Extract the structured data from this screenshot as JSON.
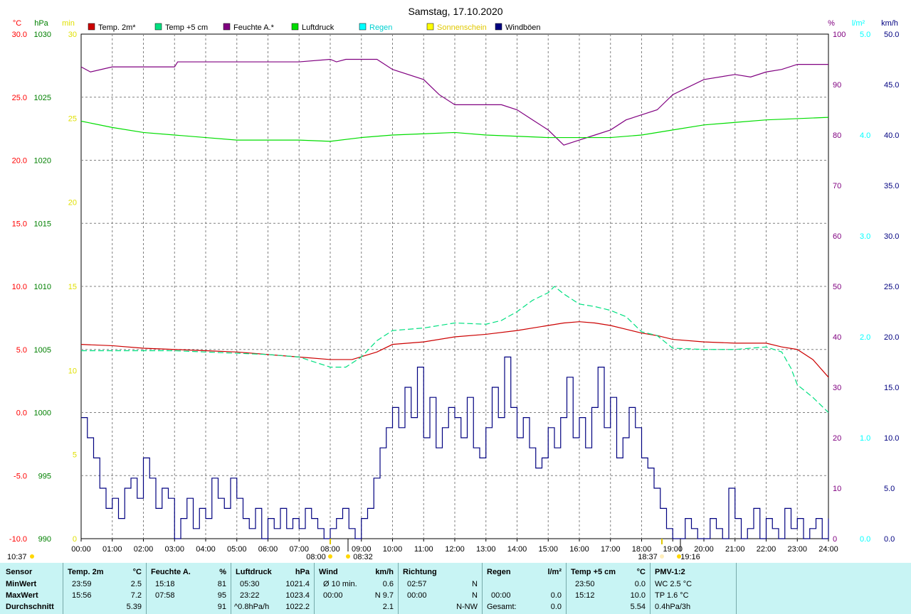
{
  "chart_data": {
    "type": "line",
    "title": "Samstag, 17.10.2020",
    "xlim": [
      0,
      24
    ],
    "x_ticks": [
      "00:00",
      "01:00",
      "02:00",
      "03:00",
      "04:00",
      "05:00",
      "06:00",
      "07:00",
      "08:00",
      "09:00",
      "10:00",
      "11:00",
      "12:00",
      "13:00",
      "14:00",
      "15:00",
      "16:00",
      "17:00",
      "18:00",
      "19:00",
      "20:00",
      "21:00",
      "22:00",
      "23:00",
      "24:00"
    ],
    "axes": {
      "temp": {
        "unit": "°C",
        "range": [
          -10,
          30
        ],
        "ticks": [
          "30.0",
          "25.0",
          "20.0",
          "15.0",
          "10.0",
          "5.0",
          "0.0",
          "-5.0",
          "-10.0"
        ],
        "color": "#ff0000"
      },
      "pressure": {
        "unit": "hPa",
        "range": [
          990,
          1030
        ],
        "ticks": [
          "1030",
          "1025",
          "1020",
          "1015",
          "1010",
          "1005",
          "1000",
          "995",
          "990"
        ],
        "color": "#008000"
      },
      "sunshine": {
        "unit": "min",
        "range": [
          0,
          30
        ],
        "ticks": [
          "30",
          "25",
          "20",
          "15",
          "10",
          "5",
          "0"
        ],
        "color": "#e0e000"
      },
      "humidity": {
        "unit": "%",
        "range": [
          0,
          100
        ],
        "ticks": [
          "100",
          "90",
          "80",
          "70",
          "60",
          "50",
          "40",
          "30",
          "20",
          "10",
          "0"
        ],
        "color": "#800080"
      },
      "rain": {
        "unit": "l/m²",
        "range": [
          0,
          5
        ],
        "ticks": [
          "5.0",
          "4.0",
          "3.0",
          "2.0",
          "1.0",
          "0.0"
        ],
        "color": "#00ffff"
      },
      "wind": {
        "unit": "km/h",
        "range": [
          0,
          50
        ],
        "ticks": [
          "50.0",
          "45.0",
          "40.0",
          "35.0",
          "30.0",
          "25.0",
          "20.0",
          "15.0",
          "10.0",
          "5.0",
          "0.0"
        ],
        "color": "#000080"
      }
    },
    "legend": [
      {
        "label": "Temp. 2m*",
        "color": "#cc0000"
      },
      {
        "label": "Temp +5 cm",
        "color": "#00e080"
      },
      {
        "label": "Feuchte A.*",
        "color": "#800080"
      },
      {
        "label": "Luftdruck",
        "color": "#00dd00"
      },
      {
        "label": "Regen",
        "color": "#00ffff"
      },
      {
        "label": "Sonnenschein",
        "color": "#ffff00"
      },
      {
        "label": "Windböen",
        "color": "#000080"
      }
    ],
    "series": [
      {
        "name": "Temp. 2m*",
        "axis": "temp",
        "color": "#cc0000",
        "x": [
          0,
          1,
          2,
          3,
          4,
          5,
          6,
          7,
          8,
          8.7,
          9.5,
          10,
          11,
          12,
          13,
          14,
          15,
          15.5,
          16,
          16.5,
          17,
          17.5,
          18,
          18.5,
          19,
          20,
          21,
          22,
          22.5,
          23,
          23.5,
          24
        ],
        "y": [
          5.4,
          5.3,
          5.1,
          5.0,
          4.9,
          4.8,
          4.6,
          4.4,
          4.2,
          4.2,
          4.8,
          5.4,
          5.6,
          6.0,
          6.2,
          6.5,
          6.9,
          7.1,
          7.2,
          7.1,
          6.9,
          6.6,
          6.3,
          6.1,
          5.8,
          5.6,
          5.5,
          5.5,
          5.2,
          5.0,
          4.2,
          2.8
        ]
      },
      {
        "name": "Temp +5 cm",
        "axis": "temp",
        "color": "#00e080",
        "dashed": true,
        "x": [
          0,
          1,
          2,
          3,
          4,
          5,
          6,
          7,
          8,
          8.5,
          9,
          9.5,
          10,
          10.5,
          11,
          12,
          13,
          13.5,
          14,
          14.5,
          15,
          15.2,
          15.5,
          16,
          16.5,
          17,
          17.5,
          18,
          18.5,
          19,
          20,
          21,
          22,
          22.5,
          22.8,
          23,
          23.5,
          24
        ],
        "y": [
          4.9,
          4.9,
          4.9,
          4.9,
          4.8,
          4.7,
          4.6,
          4.4,
          3.6,
          3.6,
          4.4,
          5.7,
          6.5,
          6.6,
          6.7,
          7.1,
          7.0,
          7.3,
          8.0,
          8.9,
          9.5,
          10.0,
          9.4,
          8.6,
          8.4,
          8.1,
          7.6,
          6.4,
          6.1,
          5.1,
          5.0,
          5.0,
          5.2,
          4.8,
          3.5,
          2.2,
          1.2,
          0.0
        ]
      },
      {
        "name": "Feuchte A.*",
        "axis": "humidity",
        "color": "#800080",
        "x": [
          0,
          0.3,
          1,
          2,
          3,
          3.1,
          4,
          5,
          6,
          7,
          8,
          8.2,
          8.5,
          9,
          9.5,
          10,
          11,
          11.5,
          12,
          12.5,
          13,
          13.5,
          14,
          14.5,
          15,
          15.5,
          16,
          16.5,
          17,
          17.5,
          18,
          18.5,
          19,
          20,
          21,
          21.5,
          22,
          22.5,
          23,
          24
        ],
        "y": [
          93.5,
          92.5,
          93.5,
          93.5,
          93.5,
          94.5,
          94.5,
          94.5,
          94.5,
          94.5,
          95,
          94.5,
          95,
          95,
          95,
          93,
          91,
          88,
          86,
          86,
          86,
          86,
          85,
          83,
          81,
          78,
          79,
          80,
          81,
          83,
          84,
          85,
          88,
          91,
          92,
          91.5,
          92.5,
          93,
          94,
          94
        ]
      },
      {
        "name": "Luftdruck",
        "axis": "pressure",
        "color": "#00dd00",
        "x": [
          0,
          1,
          2,
          3,
          4,
          5,
          6,
          7,
          8,
          9,
          10,
          11,
          12,
          13,
          14,
          15,
          16,
          17,
          18,
          19,
          20,
          21,
          22,
          23,
          24
        ],
        "y": [
          1023.1,
          1022.6,
          1022.2,
          1022.0,
          1021.8,
          1021.6,
          1021.6,
          1021.6,
          1021.5,
          1021.8,
          1022.0,
          1022.1,
          1022.2,
          1022.0,
          1021.9,
          1021.8,
          1021.8,
          1021.8,
          1022.0,
          1022.4,
          1022.8,
          1023.0,
          1023.2,
          1023.3,
          1023.4
        ]
      },
      {
        "name": "Windböen",
        "axis": "wind",
        "color": "#000080",
        "step": true,
        "x": [
          0,
          0.2,
          0.4,
          0.6,
          0.8,
          1.0,
          1.2,
          1.4,
          1.6,
          1.8,
          2.0,
          2.2,
          2.4,
          2.6,
          2.8,
          3.0,
          3.2,
          3.4,
          3.6,
          3.8,
          4.0,
          4.2,
          4.4,
          4.6,
          4.8,
          5.0,
          5.2,
          5.4,
          5.6,
          5.8,
          6.0,
          6.2,
          6.4,
          6.6,
          6.8,
          7.0,
          7.2,
          7.4,
          7.6,
          7.8,
          8.0,
          8.2,
          8.4,
          8.6,
          8.8,
          9.0,
          9.2,
          9.4,
          9.6,
          9.8,
          10.0,
          10.2,
          10.4,
          10.6,
          10.8,
          11.0,
          11.2,
          11.4,
          11.6,
          11.8,
          12.0,
          12.2,
          12.4,
          12.6,
          12.8,
          13.0,
          13.2,
          13.4,
          13.6,
          13.8,
          14.0,
          14.2,
          14.4,
          14.6,
          14.8,
          15.0,
          15.2,
          15.4,
          15.6,
          15.8,
          16.0,
          16.2,
          16.4,
          16.6,
          16.8,
          17.0,
          17.2,
          17.4,
          17.6,
          17.8,
          18.0,
          18.2,
          18.4,
          18.6,
          18.8,
          19.0,
          19.2,
          19.4,
          19.6,
          19.8,
          20.0,
          20.2,
          20.4,
          20.6,
          20.8,
          21.0,
          21.2,
          21.4,
          21.6,
          21.8,
          22.0,
          22.2,
          22.4,
          22.6,
          22.8,
          23.0,
          23.2,
          23.4,
          23.6,
          23.8,
          24.0
        ],
        "y": [
          12,
          10,
          8,
          5,
          3,
          4,
          2,
          5,
          6,
          4,
          8,
          6,
          3,
          5,
          4,
          0,
          2,
          4,
          1,
          3,
          2,
          6,
          4,
          3,
          6,
          4,
          2,
          1,
          3,
          0,
          2,
          1,
          3,
          1,
          2,
          1,
          3,
          2,
          1,
          0,
          1,
          2,
          3,
          1,
          0,
          2,
          3,
          6,
          9,
          11,
          13,
          11,
          15,
          12,
          17,
          10,
          14,
          9,
          11,
          13,
          12,
          10,
          14,
          9,
          8,
          11,
          15,
          12,
          18,
          13,
          10,
          12,
          9,
          7,
          8,
          11,
          9,
          12,
          16,
          10,
          12,
          9,
          13,
          17,
          11,
          14,
          8,
          10,
          13,
          11,
          8,
          7,
          5,
          3,
          1,
          0,
          0,
          2,
          1,
          0,
          0,
          2,
          1,
          0,
          5,
          2,
          0,
          1,
          3,
          0,
          2,
          1,
          0,
          3,
          1,
          2,
          0,
          1,
          2,
          0,
          2
        ]
      }
    ],
    "sun_markers": {
      "left": "08:00",
      "left2": "08:32",
      "right": "18:37",
      "right2": "19:16",
      "corner": "10:37"
    }
  },
  "stats": {
    "headers": {
      "sensor": "Sensor",
      "temp2m": "Temp. 2m",
      "temp2m_unit": "°C",
      "feuchte": "Feuchte A.",
      "feuchte_unit": "%",
      "luftdruck": "Luftdruck",
      "luftdruck_unit": "hPa",
      "wind": "Wind",
      "wind_unit": "km/h",
      "richtung": "Richtung",
      "regen": "Regen",
      "regen_unit": "l/m²",
      "temp5cm": "Temp +5 cm",
      "temp5cm_unit": "°C",
      "pmv": "PMV-1:2"
    },
    "rows": {
      "min": {
        "label": "MinWert",
        "t2_time": "23:59",
        "t2": "2.5",
        "f_time": "15:18",
        "f": "81",
        "p_time": "05:30",
        "p": "1021.4",
        "w_label": "Ø 10 min.",
        "w": "0.6",
        "r_time": "02:57",
        "r": "N",
        "rain_time": "",
        "rain": "",
        "t5_time": "23:50",
        "t5": "0.0",
        "pmv": "WC 2.5 °C"
      },
      "max": {
        "label": "MaxWert",
        "t2_time": "15:56",
        "t2": "7.2",
        "f_time": "07:58",
        "f": "95",
        "p_time": "23:22",
        "p": "1023.4",
        "w_label": "00:00",
        "w": "N 9.7",
        "r_time": "00:00",
        "r": "N",
        "rain_time": "00:00",
        "rain": "0.0",
        "t5_time": "15:12",
        "t5": "10.0",
        "pmv": "TP 1.6 °C"
      },
      "avg": {
        "label": "Durchschnitt",
        "t2": "5.39",
        "f": "91",
        "p_time": "^0.8hPa/h",
        "p": "1022.2",
        "w": "2.1",
        "r": "N-NW",
        "rain_time": "Gesamt:",
        "rain": "0.0",
        "t5": "5.54",
        "pmv": "0.4hPa/3h"
      }
    }
  }
}
